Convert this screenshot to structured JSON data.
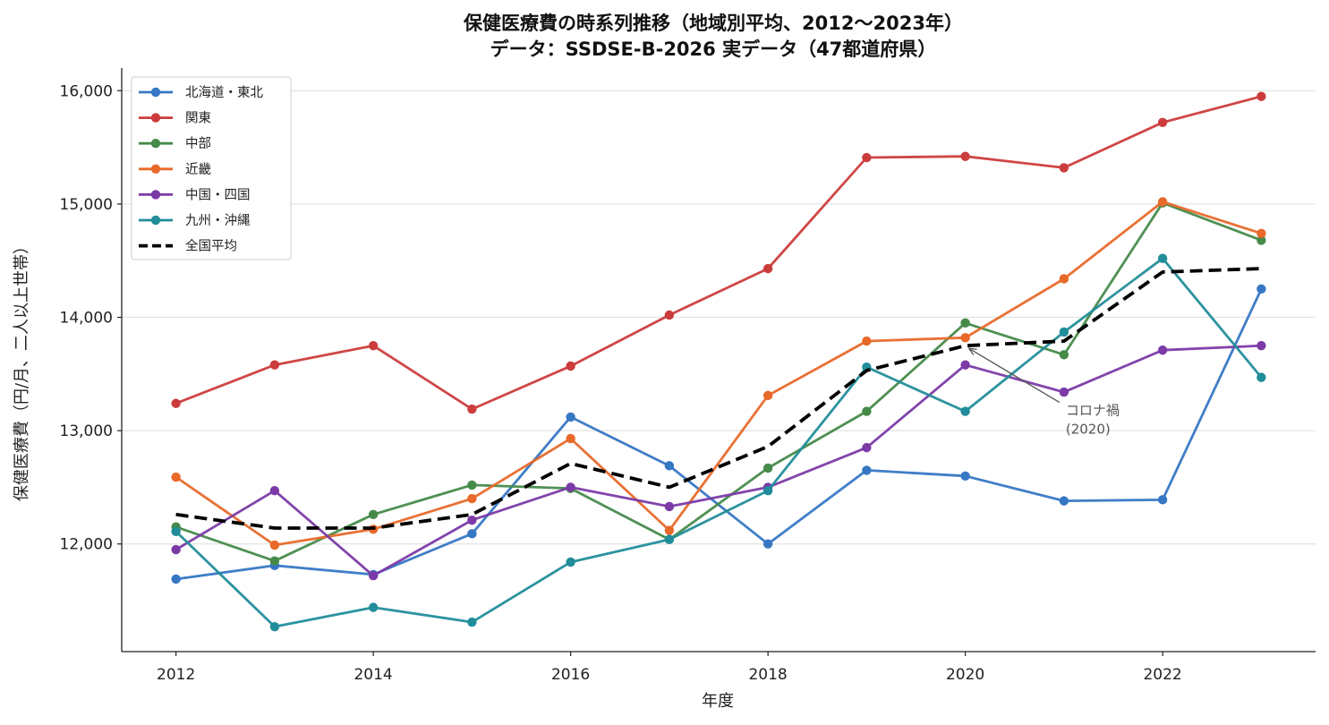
{
  "chart_data": {
    "type": "line",
    "title": "保健医療費の時系列推移（地域別平均、2012〜2023年）",
    "subtitle": "データ：SSDSE-B-2026 実データ（47都道府県）",
    "xlabel": "年度",
    "ylabel": "保健医療費（円/月、二人以上世帯）",
    "x": [
      2012,
      2013,
      2014,
      2015,
      2016,
      2017,
      2018,
      2019,
      2020,
      2021,
      2022,
      2023
    ],
    "xlim": [
      2011.45,
      2023.55
    ],
    "ylim": [
      11050,
      16200
    ],
    "xticks": [
      2012,
      2014,
      2016,
      2018,
      2020,
      2022
    ],
    "xtick_labels": [
      "2012",
      "2014",
      "2016",
      "2018",
      "2020",
      "2022"
    ],
    "yticks": [
      12000,
      13000,
      14000,
      15000,
      16000
    ],
    "ytick_labels": [
      "12,000",
      "13,000",
      "14,000",
      "15,000",
      "16,000"
    ],
    "grid": "y-axis horizontal lines",
    "legend_position": "top-left",
    "series": [
      {
        "name": "北海道・東北",
        "color": "#3677c4",
        "style": "solid-marker",
        "values": [
          11690,
          11810,
          11730,
          12090,
          13120,
          12690,
          12000,
          12650,
          12600,
          12380,
          12390,
          14250
        ]
      },
      {
        "name": "関東",
        "color": "#cc3c3c",
        "style": "solid-marker",
        "values": [
          13240,
          13580,
          13750,
          13190,
          13570,
          14020,
          14430,
          15410,
          15420,
          15320,
          15720,
          15950
        ]
      },
      {
        "name": "中部",
        "color": "#468a4a",
        "style": "solid-marker",
        "values": [
          12150,
          11850,
          12260,
          12520,
          12490,
          12040,
          12670,
          13170,
          13950,
          13670,
          15010,
          14680
        ]
      },
      {
        "name": "近畿",
        "color": "#e8692a",
        "style": "solid-marker",
        "values": [
          12590,
          11990,
          12130,
          12400,
          12930,
          12120,
          13310,
          13790,
          13820,
          14340,
          15020,
          14740
        ]
      },
      {
        "name": "中国・四国",
        "color": "#7b3aa6",
        "style": "solid-marker",
        "values": [
          11950,
          12470,
          11720,
          12210,
          12500,
          12330,
          12500,
          12850,
          13580,
          13340,
          13710,
          13750
        ]
      },
      {
        "name": "九州・沖縄",
        "color": "#218d9a",
        "style": "solid-marker",
        "values": [
          12110,
          11270,
          11440,
          11310,
          11840,
          12040,
          12470,
          13560,
          13170,
          13870,
          14520,
          13470
        ]
      },
      {
        "name": "全国平均",
        "color": "#000000",
        "style": "dashed",
        "values": [
          12260,
          12140,
          12140,
          12260,
          12710,
          12500,
          12860,
          13530,
          13750,
          13790,
          14400,
          14430
        ]
      }
    ],
    "annotation": {
      "line1": "コロナ禍",
      "line2": "(2020)",
      "target_x": 2020,
      "target_y": 13750,
      "text_x": 2021.0,
      "text_y": 13170
    }
  }
}
